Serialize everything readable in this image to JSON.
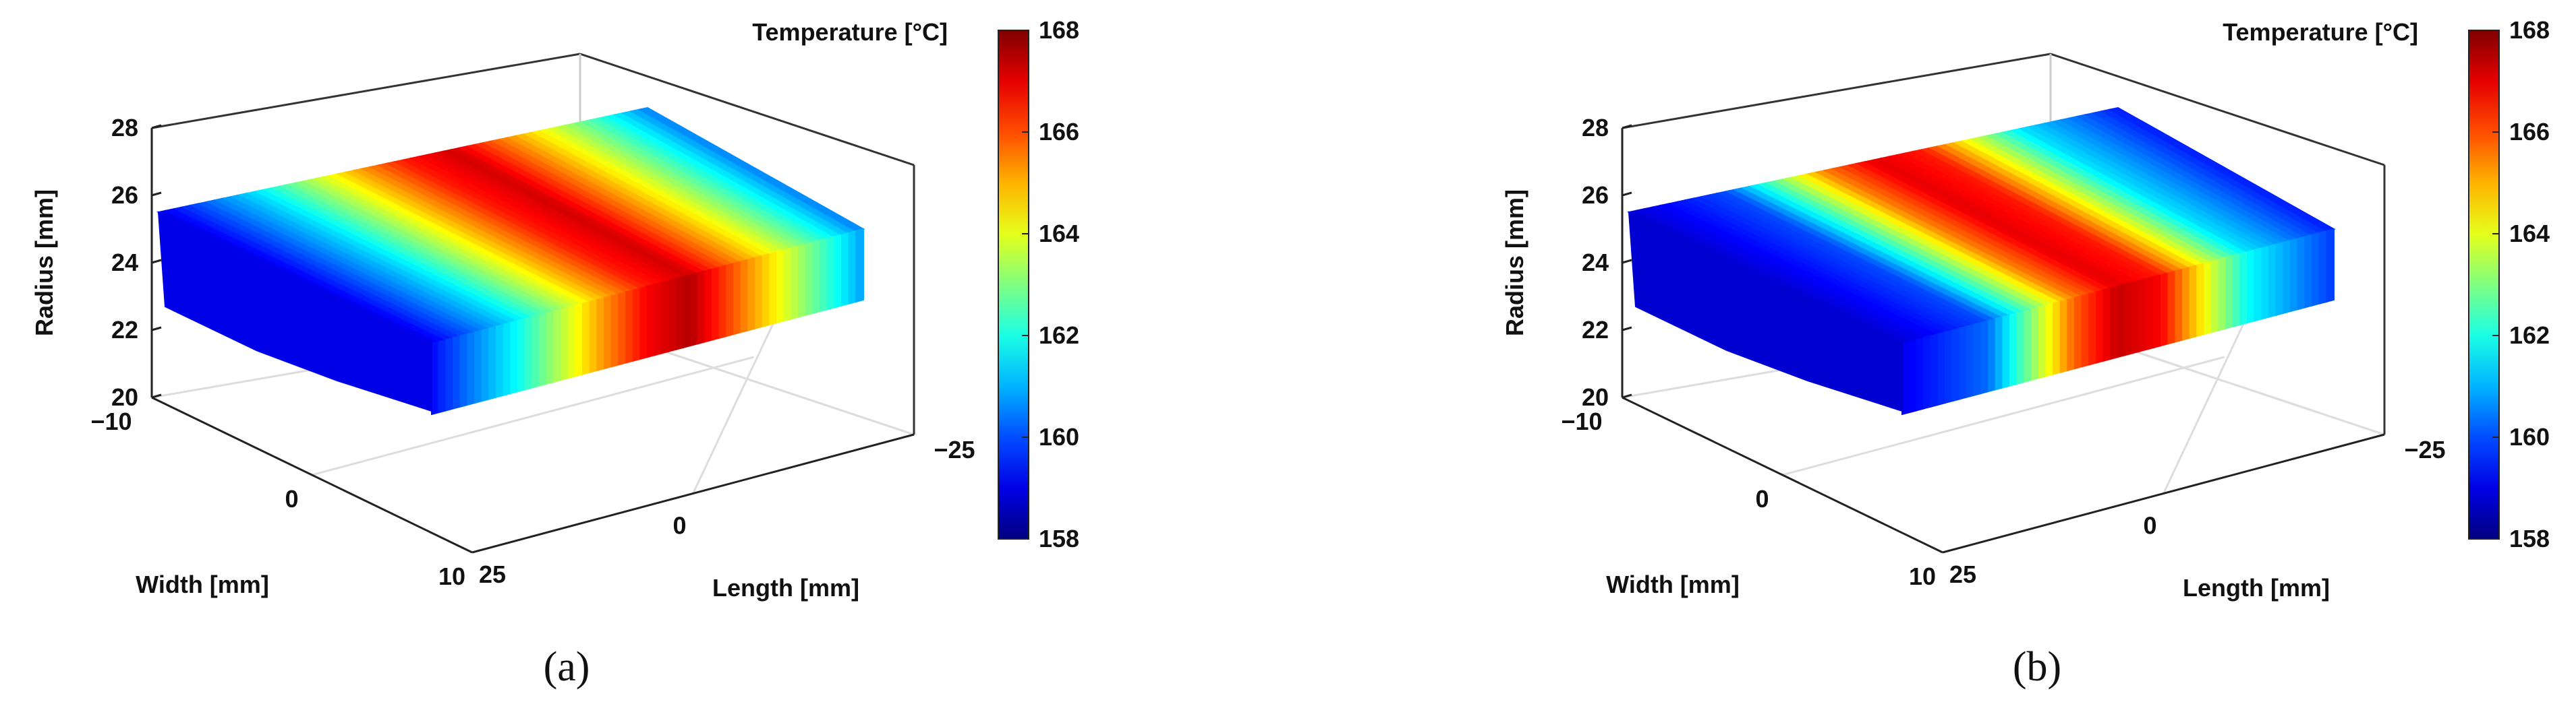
{
  "panels": [
    {
      "caption": "(a)",
      "chart_data": {
        "type": "heatmap",
        "title": "",
        "xlabel": "Width [mm]",
        "ylabel": "Length [mm]",
        "zlabel": "Radius [mm]",
        "xlim": [
          -10,
          10
        ],
        "ylim": [
          -25,
          25
        ],
        "zlim": [
          20,
          28
        ],
        "xticks": [
          "−10",
          "0",
          "10"
        ],
        "yticks": [
          "−25",
          "0",
          "25"
        ],
        "zticks": [
          "20",
          "22",
          "24",
          "26",
          "28"
        ],
        "colorbar": {
          "label": "Temperature [°C]",
          "range": [
            158,
            168
          ],
          "ticks": [
            "158",
            "160",
            "162",
            "164",
            "166",
            "168"
          ]
        },
        "length_profile": {
          "length": [
            25,
            15,
            5,
            0,
            -5,
            -15,
            -25
          ],
          "temperature": [
            159.0,
            161.5,
            165.0,
            166.5,
            167.2,
            164.0,
            160.5
          ]
        }
      }
    },
    {
      "caption": "(b)",
      "chart_data": {
        "type": "heatmap",
        "title": "",
        "xlabel": "Width [mm]",
        "ylabel": "Length [mm]",
        "zlabel": "Radius [mm]",
        "xlim": [
          -10,
          10
        ],
        "ylim": [
          -25,
          25
        ],
        "zlim": [
          20,
          28
        ],
        "xticks": [
          "−10",
          "0",
          "10"
        ],
        "yticks": [
          "−25",
          "0",
          "25"
        ],
        "zticks": [
          "20",
          "22",
          "24",
          "26",
          "28"
        ],
        "colorbar": {
          "label": "Temperature [°C]",
          "range": [
            158,
            168
          ],
          "ticks": [
            "158",
            "160",
            "162",
            "164",
            "166",
            "168"
          ]
        },
        "length_profile": {
          "length": [
            25,
            15,
            5,
            0,
            -5,
            -15,
            -25
          ],
          "temperature": [
            158.8,
            160.0,
            165.5,
            167.0,
            166.5,
            161.5,
            159.5
          ]
        }
      }
    }
  ]
}
